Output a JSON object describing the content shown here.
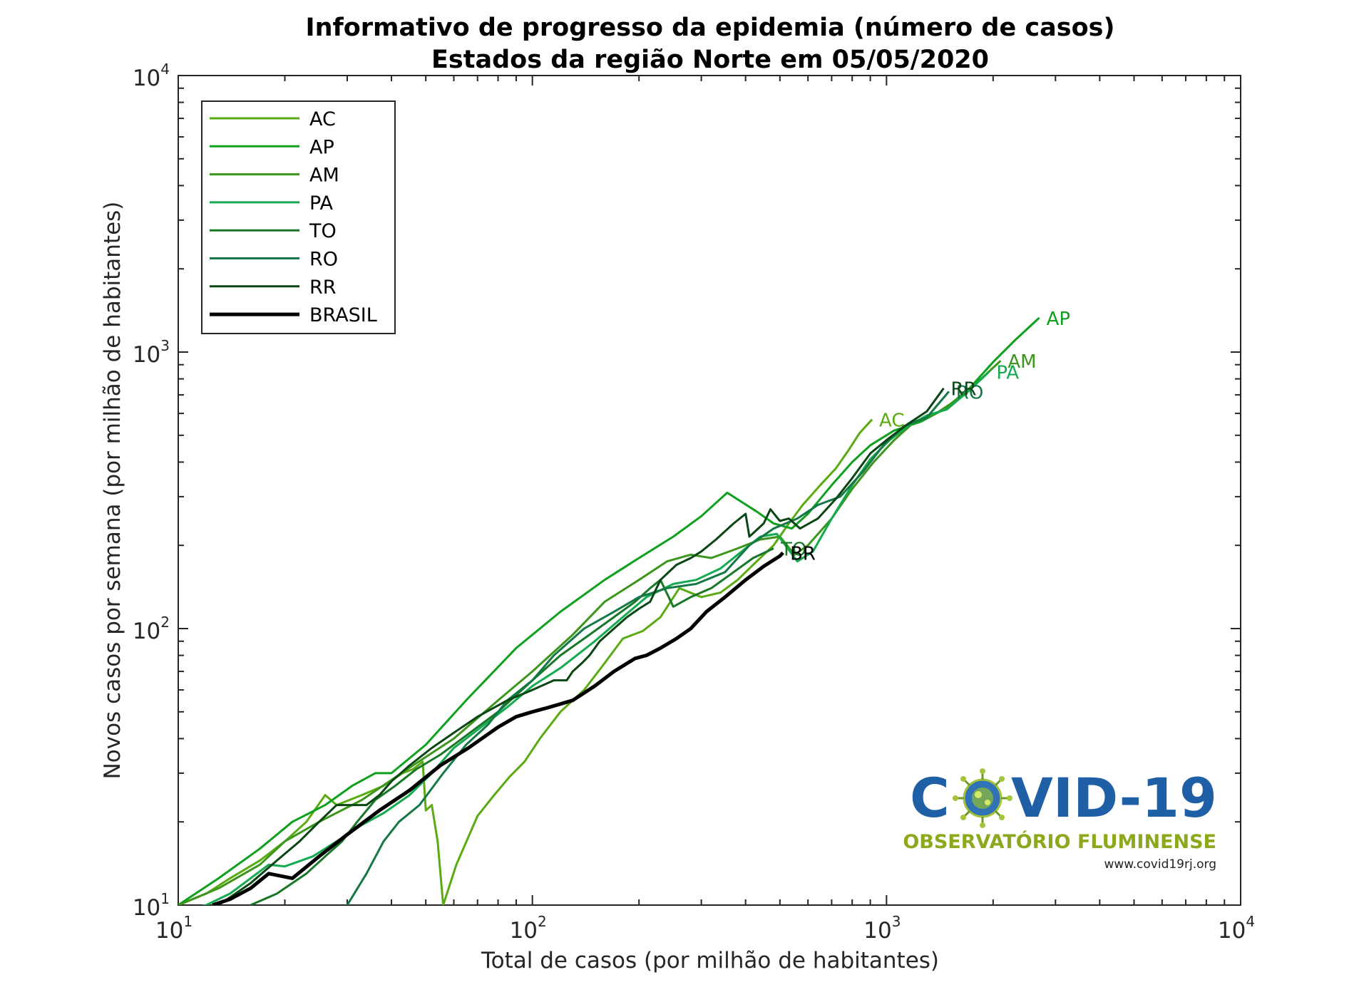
{
  "chart_data": {
    "type": "line",
    "title": "Informativo de progresso da epidemia (número de casos)",
    "subtitle": "Estados da região Norte  em 05/05/2020",
    "xlabel": "Total de casos (por milhão de habitantes)",
    "ylabel": "Novos casos por semana (por milhão de habitantes)",
    "xscale": "log",
    "yscale": "log",
    "xlim": [
      10,
      10000
    ],
    "ylim": [
      10,
      10000
    ],
    "x_ticks": [
      {
        "base": "10",
        "exp": "1"
      },
      {
        "base": "10",
        "exp": "2"
      },
      {
        "base": "10",
        "exp": "3"
      },
      {
        "base": "10",
        "exp": "4"
      }
    ],
    "y_ticks": [
      {
        "base": "10",
        "exp": "1"
      },
      {
        "base": "10",
        "exp": "2"
      },
      {
        "base": "10",
        "exp": "3"
      },
      {
        "base": "10",
        "exp": "4"
      }
    ],
    "grid": false,
    "legend_position": "top-left",
    "series": [
      {
        "name": "AC",
        "label": "AC",
        "color": "#5aaa12",
        "width": 3,
        "points": [
          [
            10,
            10
          ],
          [
            12,
            11
          ],
          [
            14,
            12.5
          ],
          [
            17,
            14.5
          ],
          [
            20,
            17
          ],
          [
            23,
            20
          ],
          [
            26,
            25
          ],
          [
            28,
            23
          ],
          [
            33,
            25
          ],
          [
            38,
            27
          ],
          [
            43,
            30
          ],
          [
            46,
            31
          ],
          [
            49,
            33
          ],
          [
            50,
            22
          ],
          [
            52,
            23
          ],
          [
            54,
            17
          ],
          [
            56,
            10
          ],
          [
            61,
            14
          ],
          [
            70,
            21
          ],
          [
            78,
            25
          ],
          [
            86,
            29
          ],
          [
            95,
            33
          ],
          [
            105,
            40
          ],
          [
            120,
            50
          ],
          [
            140,
            60
          ],
          [
            160,
            75
          ],
          [
            180,
            92
          ],
          [
            205,
            98
          ],
          [
            230,
            110
          ],
          [
            260,
            140
          ],
          [
            300,
            130
          ],
          [
            340,
            135
          ],
          [
            380,
            150
          ],
          [
            420,
            170
          ],
          [
            480,
            200
          ],
          [
            530,
            240
          ],
          [
            580,
            280
          ],
          [
            650,
            330
          ],
          [
            720,
            380
          ],
          [
            780,
            440
          ],
          [
            840,
            510
          ],
          [
            910,
            570
          ]
        ]
      },
      {
        "name": "AP",
        "label": "AP",
        "color": "#0fa01e",
        "width": 3,
        "points": [
          [
            10,
            10
          ],
          [
            13,
            12.5
          ],
          [
            17,
            16
          ],
          [
            21,
            20
          ],
          [
            26,
            23
          ],
          [
            31,
            27
          ],
          [
            36,
            30
          ],
          [
            40,
            30
          ],
          [
            50,
            38
          ],
          [
            65,
            55
          ],
          [
            90,
            85
          ],
          [
            120,
            115
          ],
          [
            160,
            150
          ],
          [
            200,
            180
          ],
          [
            250,
            215
          ],
          [
            300,
            255
          ],
          [
            355,
            310
          ],
          [
            430,
            265
          ],
          [
            480,
            240
          ],
          [
            540,
            230
          ],
          [
            600,
            260
          ],
          [
            700,
            330
          ],
          [
            800,
            400
          ],
          [
            900,
            460
          ],
          [
            1050,
            520
          ],
          [
            1250,
            560
          ],
          [
            1450,
            620
          ],
          [
            1700,
            730
          ],
          [
            2000,
            920
          ],
          [
            2300,
            1100
          ],
          [
            2700,
            1330
          ]
        ]
      },
      {
        "name": "AM",
        "label": "AM",
        "color": "#3c961c",
        "width": 3,
        "points": [
          [
            10,
            10
          ],
          [
            13,
            11.5
          ],
          [
            17,
            14
          ],
          [
            20,
            17
          ],
          [
            25,
            20
          ],
          [
            33,
            24
          ],
          [
            46,
            32
          ],
          [
            60,
            40
          ],
          [
            80,
            55
          ],
          [
            100,
            70
          ],
          [
            130,
            95
          ],
          [
            160,
            125
          ],
          [
            200,
            150
          ],
          [
            240,
            175
          ],
          [
            280,
            185
          ],
          [
            320,
            180
          ],
          [
            380,
            195
          ],
          [
            440,
            210
          ],
          [
            500,
            215
          ],
          [
            550,
            185
          ],
          [
            600,
            200
          ],
          [
            700,
            250
          ],
          [
            800,
            320
          ],
          [
            920,
            400
          ],
          [
            1050,
            480
          ],
          [
            1200,
            560
          ],
          [
            1380,
            600
          ],
          [
            1600,
            680
          ],
          [
            1850,
            800
          ],
          [
            2100,
            930
          ]
        ]
      },
      {
        "name": "PA",
        "label": "PA",
        "color": "#14aa50",
        "width": 3,
        "points": [
          [
            10,
            9.5
          ],
          [
            12,
            10
          ],
          [
            14,
            11
          ],
          [
            16,
            12.5
          ],
          [
            18,
            14
          ],
          [
            20,
            13.8
          ],
          [
            24,
            15
          ],
          [
            28,
            17
          ],
          [
            33,
            19.5
          ],
          [
            38,
            21.5
          ],
          [
            45,
            25
          ],
          [
            52,
            30
          ],
          [
            60,
            37
          ],
          [
            70,
            43
          ],
          [
            85,
            52
          ],
          [
            100,
            62
          ],
          [
            120,
            72
          ],
          [
            150,
            90
          ],
          [
            180,
            110
          ],
          [
            210,
            130
          ],
          [
            250,
            145
          ],
          [
            290,
            150
          ],
          [
            340,
            165
          ],
          [
            390,
            190
          ],
          [
            440,
            215
          ],
          [
            490,
            220
          ],
          [
            560,
            175
          ],
          [
            620,
            190
          ],
          [
            700,
            250
          ],
          [
            800,
            330
          ],
          [
            900,
            410
          ],
          [
            1020,
            480
          ],
          [
            1150,
            540
          ],
          [
            1300,
            590
          ],
          [
            1480,
            620
          ],
          [
            1700,
            720
          ],
          [
            1950,
            850
          ]
        ]
      },
      {
        "name": "TO",
        "label": "TO",
        "color": "#197828",
        "width": 3,
        "points": [
          [
            16,
            10
          ],
          [
            19,
            11
          ],
          [
            23,
            13
          ],
          [
            26,
            15
          ],
          [
            29,
            17
          ],
          [
            32,
            20
          ],
          [
            36,
            24
          ],
          [
            41,
            27
          ],
          [
            47,
            31
          ],
          [
            55,
            35
          ],
          [
            65,
            41
          ],
          [
            80,
            50
          ],
          [
            100,
            65
          ],
          [
            120,
            80
          ],
          [
            145,
            95
          ],
          [
            170,
            110
          ],
          [
            195,
            125
          ],
          [
            215,
            140
          ],
          [
            230,
            150
          ],
          [
            250,
            120
          ],
          [
            280,
            130
          ],
          [
            320,
            140
          ],
          [
            370,
            160
          ],
          [
            420,
            180
          ],
          [
            480,
            195
          ]
        ]
      },
      {
        "name": "RO",
        "label": "RO",
        "color": "#147846",
        "width": 3,
        "points": [
          [
            30,
            10
          ],
          [
            34,
            13
          ],
          [
            38,
            17
          ],
          [
            42,
            20
          ],
          [
            48,
            23
          ],
          [
            56,
            30
          ],
          [
            65,
            38
          ],
          [
            75,
            45
          ],
          [
            85,
            55
          ],
          [
            100,
            65
          ],
          [
            115,
            80
          ],
          [
            140,
            100
          ],
          [
            170,
            115
          ],
          [
            200,
            130
          ],
          [
            240,
            140
          ],
          [
            290,
            145
          ],
          [
            350,
            160
          ],
          [
            410,
            200
          ],
          [
            480,
            230
          ],
          [
            560,
            250
          ],
          [
            640,
            280
          ],
          [
            740,
            300
          ],
          [
            860,
            370
          ],
          [
            980,
            460
          ],
          [
            1120,
            540
          ],
          [
            1300,
            580
          ],
          [
            1500,
            720
          ]
        ]
      },
      {
        "name": "RR",
        "label": "RR",
        "color": "#0a4614",
        "width": 3,
        "points": [
          [
            13,
            10
          ],
          [
            16,
            12
          ],
          [
            19,
            14.5
          ],
          [
            22,
            17
          ],
          [
            25,
            20
          ],
          [
            28,
            23
          ],
          [
            31,
            23
          ],
          [
            34,
            23
          ],
          [
            37,
            25
          ],
          [
            40,
            28
          ],
          [
            45,
            32
          ],
          [
            52,
            37
          ],
          [
            60,
            42
          ],
          [
            70,
            48
          ],
          [
            85,
            55
          ],
          [
            100,
            60
          ],
          [
            115,
            65
          ],
          [
            125,
            65
          ],
          [
            130,
            70
          ],
          [
            138,
            75
          ],
          [
            145,
            80
          ],
          [
            155,
            90
          ],
          [
            170,
            100
          ],
          [
            185,
            110
          ],
          [
            200,
            118
          ],
          [
            215,
            125
          ],
          [
            230,
            150
          ],
          [
            255,
            170
          ],
          [
            280,
            180
          ],
          [
            300,
            190
          ],
          [
            330,
            210
          ],
          [
            370,
            240
          ],
          [
            400,
            260
          ],
          [
            410,
            215
          ],
          [
            450,
            240
          ],
          [
            470,
            270
          ],
          [
            500,
            245
          ],
          [
            530,
            250
          ],
          [
            570,
            230
          ],
          [
            640,
            250
          ],
          [
            720,
            295
          ],
          [
            800,
            350
          ],
          [
            900,
            430
          ],
          [
            1020,
            490
          ],
          [
            1150,
            550
          ],
          [
            1300,
            610
          ],
          [
            1450,
            740
          ]
        ]
      },
      {
        "name": "BRASIL",
        "label": "BR",
        "color": "#000000",
        "width": 5,
        "points": [
          [
            12.5,
            10
          ],
          [
            14,
            10.5
          ],
          [
            16,
            11.5
          ],
          [
            18,
            13
          ],
          [
            21,
            12.5
          ],
          [
            25,
            15
          ],
          [
            30,
            18
          ],
          [
            37,
            22
          ],
          [
            45,
            26
          ],
          [
            55,
            32
          ],
          [
            66,
            37
          ],
          [
            80,
            44
          ],
          [
            90,
            48
          ],
          [
            100,
            50
          ],
          [
            112,
            52
          ],
          [
            130,
            55
          ],
          [
            150,
            62
          ],
          [
            170,
            70
          ],
          [
            195,
            78
          ],
          [
            210,
            80
          ],
          [
            230,
            85
          ],
          [
            255,
            92
          ],
          [
            280,
            100
          ],
          [
            310,
            115
          ],
          [
            350,
            130
          ],
          [
            400,
            150
          ],
          [
            450,
            168
          ],
          [
            500,
            183
          ],
          [
            510,
            188
          ]
        ]
      }
    ]
  },
  "logo": {
    "title_left": "C",
    "title_right": "VID-19",
    "subtitle": "OBSERVATÓRIO FLUMINENSE",
    "url": "www.covid19rj.org"
  }
}
